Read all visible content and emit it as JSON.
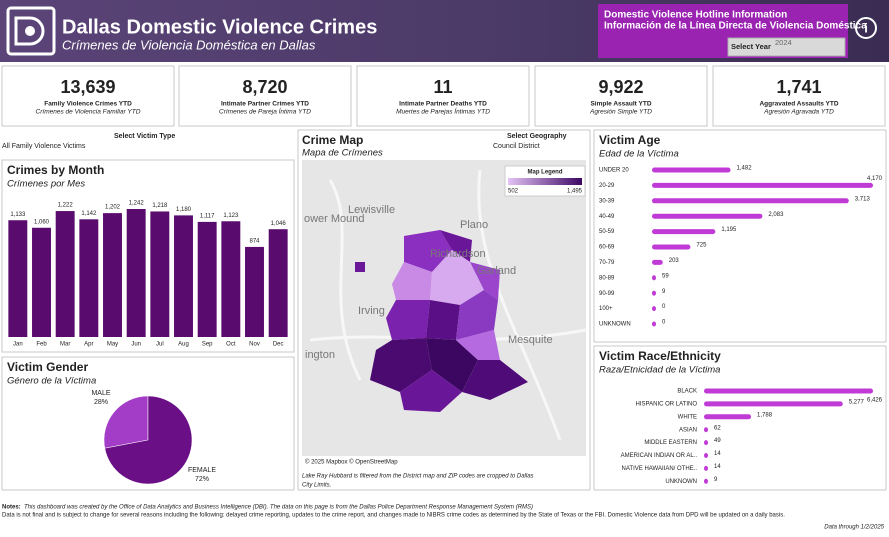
{
  "header": {
    "title": "Dallas Domestic Violence Crimes",
    "subtitle": "Crímenes de Violencia Doméstica en Dallas",
    "hotline_en": "Domestic Violence Hotline Information",
    "hotline_es": "Información de la Línea Directa de Violencia Doméstica",
    "select_year_label": "Select Year",
    "select_year_value": "2024"
  },
  "kpis": [
    {
      "value": "13,639",
      "label": "Family Violence Crimes YTD",
      "label_es": "Crímenes de Violencia Familiar YTD"
    },
    {
      "value": "8,720",
      "label": "Intimate Partner Crimes YTD",
      "label_es": "Crímenes de Pareja Íntima YTD"
    },
    {
      "value": "11",
      "label": "Intimate Partner Deaths YTD",
      "label_es": "Muertes de Parejas Íntimas YTD"
    },
    {
      "value": "9,922",
      "label": "Simple Assault YTD",
      "label_es": "Agresión Simple YTD"
    },
    {
      "value": "1,741",
      "label": "Aggravated Assaults YTD",
      "label_es": "Agresión Agravada YTD"
    }
  ],
  "filters": {
    "victim_type_label": "Select Victim Type",
    "victim_type_value": "All Family Violence Victims",
    "geography_label": "Select Geography",
    "geography_value": "Council District"
  },
  "chart_data": [
    {
      "type": "bar",
      "title": "Crimes by Month",
      "subtitle": "Crímenes por Mes",
      "color": "#5a0b6e",
      "categories": [
        "Jan",
        "Feb",
        "Mar",
        "Apr",
        "May",
        "Jun",
        "Jul",
        "Aug",
        "Sep",
        "Oct",
        "Nov",
        "Dec"
      ],
      "values": [
        1133,
        1060,
        1222,
        1142,
        1202,
        1242,
        1218,
        1180,
        1117,
        1123,
        874,
        1046
      ],
      "value_labels": [
        "1,133",
        "1,060",
        "1,222",
        "1,142",
        "1,202",
        "1,242",
        "1,218",
        "1,180",
        "1,117",
        "1,123",
        "874",
        "1,046"
      ]
    },
    {
      "type": "hbar",
      "title": "Victim Age",
      "subtitle": "Edad de la Víctima",
      "color": "#c03ad6",
      "categories": [
        "UNDER 20",
        "20-29",
        "30-39",
        "40-49",
        "50-59",
        "60-69",
        "70-79",
        "80-89",
        "90-99",
        "100+",
        "UNKNOWN"
      ],
      "values": [
        1482,
        4170,
        3713,
        2083,
        1195,
        725,
        203,
        59,
        9,
        0,
        0
      ],
      "value_labels": [
        "1,482",
        "4,170",
        "3,713",
        "2,083",
        "1,195",
        "725",
        "203",
        "59",
        "9",
        "0",
        "0"
      ]
    },
    {
      "type": "hbar",
      "title": "Victim Race/Ethnicity",
      "subtitle": "Raza/Etnicidad de la Víctima",
      "color": "#c03ad6",
      "categories": [
        "BLACK",
        "HISPANIC OR LATINO",
        "WHITE",
        "ASIAN",
        "MIDDLE EASTERN",
        "AMERICAN INDIAN OR AL..",
        "NATIVE HAWAIIAN/ OTHE..",
        "UNKNOWN"
      ],
      "values": [
        6426,
        5277,
        1788,
        62,
        49,
        14,
        14,
        9
      ],
      "value_labels": [
        "6,426",
        "5,277",
        "1,788",
        "62",
        "49",
        "14",
        "14",
        "9"
      ]
    },
    {
      "type": "pie",
      "title": "Victim Gender",
      "subtitle": "Género de la Víctima",
      "categories": [
        "MALE",
        "FEMALE"
      ],
      "values": [
        28,
        72
      ],
      "value_labels": [
        "28%",
        "72%"
      ],
      "colors": [
        "#a33dc8",
        "#6b0f86"
      ]
    }
  ],
  "map": {
    "title": "Crime Map",
    "subtitle": "Mapa de Crímenes",
    "legend_title": "Map Legend",
    "legend_labels": [
      "502",
      "1,495"
    ],
    "places": [
      "Lewisville",
      "Plano",
      "Richardson",
      "Garland",
      "Irving",
      "Mesquite",
      "ington",
      "ower Mound"
    ],
    "attribution": "© 2025 Mapbox © OpenStreetMap",
    "note": [
      "Lake Ray Hubbard is filtered from the District map and ZIP codes are cropped to Dallas",
      "City Limits."
    ]
  },
  "notes": {
    "label": "Notes:",
    "line1": "This dashboard was created by the Office of Data Analytics and Business Intelligence (DBI). The data on this page is from the Dallas Police Department Response Management System (RMS)",
    "line2": "Data is not final and is subject to change for several reasons including the following: delayed crime reporting, updates to the crime report, and changes made to NIBRS crime codes as determined by the State of Texas or the FBI. Domestic Violence data from DPD will be updated on a daily basis.",
    "data_through": "Data through 1/2/2025"
  }
}
